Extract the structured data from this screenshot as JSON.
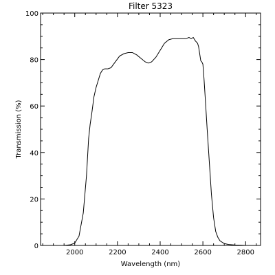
{
  "chart_data": {
    "type": "line",
    "title": "Filter 5323",
    "xlabel": "Wavelength (nm)",
    "ylabel": "Transmission (%)",
    "xlim": [
      1840,
      2870
    ],
    "ylim": [
      0,
      100
    ],
    "x_ticks": [
      2000,
      2200,
      2400,
      2600,
      2800
    ],
    "y_ticks": [
      0,
      20,
      40,
      60,
      80,
      100
    ],
    "x_tick_labels": [
      "2000",
      "2200",
      "2400",
      "2600",
      "2800"
    ],
    "y_tick_labels": [
      "0",
      "20",
      "40",
      "60",
      "80",
      "100"
    ],
    "grid": false,
    "series": [
      {
        "x": [
          1950,
          1980,
          2000,
          2020,
          2040,
          2055,
          2065,
          2072,
          2080,
          2090,
          2100,
          2110,
          2120,
          2130,
          2140,
          2155,
          2170,
          2190,
          2210,
          2230,
          2250,
          2270,
          2290,
          2310,
          2330,
          2345,
          2360,
          2380,
          2400,
          2420,
          2440,
          2460,
          2480,
          2500,
          2520,
          2535,
          2545,
          2555,
          2565,
          2575,
          2580,
          2590,
          2595,
          2600,
          2605,
          2612,
          2620,
          2630,
          2640,
          2650,
          2660,
          2670,
          2680,
          2700,
          2720,
          2750,
          2780,
          2800,
          2830
        ],
        "y": [
          0,
          0.3,
          1,
          4,
          14,
          30,
          46,
          52,
          57,
          64,
          68,
          71,
          74,
          75.5,
          76,
          76,
          76.5,
          79,
          81.5,
          82.5,
          83,
          83,
          82,
          80.5,
          79,
          78.5,
          79,
          81,
          84,
          87,
          88.5,
          89,
          89,
          89,
          89,
          89.5,
          89,
          89.5,
          88,
          87,
          85.5,
          79.5,
          79,
          78,
          72,
          62,
          50,
          36,
          22,
          12,
          6,
          3.5,
          2,
          0.8,
          0.4,
          0.2,
          0.1,
          0,
          0
        ]
      }
    ]
  }
}
